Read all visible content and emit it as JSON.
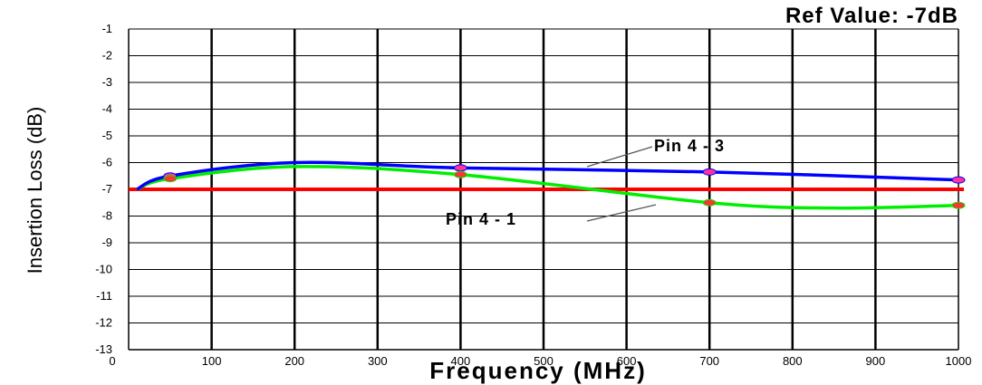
{
  "chart_data": {
    "type": "line",
    "title": "Ref Value: -7dB",
    "xlabel": "Frequency (MHz)",
    "ylabel": "Insertion Loss (dB)",
    "xlim": [
      0,
      1000
    ],
    "ylim": [
      -13,
      -1
    ],
    "xticks": [
      0,
      100,
      200,
      300,
      400,
      500,
      600,
      700,
      800,
      900,
      1000
    ],
    "yticks": [
      -1,
      -2,
      -3,
      -4,
      -5,
      -6,
      -7,
      -8,
      -9,
      -10,
      -11,
      -12,
      -13
    ],
    "grid": true,
    "reference_line": {
      "y": -7,
      "color": "#ff0000"
    },
    "series": [
      {
        "name": "Pin 4 - 3",
        "color": "#0000ff",
        "x": [
          10,
          50,
          200,
          400,
          700,
          1000
        ],
        "y": [
          -7.0,
          -6.5,
          -6.0,
          -6.2,
          -6.35,
          -6.65
        ],
        "markers_at": [
          50,
          400,
          700,
          1000
        ]
      },
      {
        "name": "Pin 4 - 1",
        "color": "#00ee00",
        "x": [
          10,
          50,
          200,
          400,
          700,
          850,
          1000
        ],
        "y": [
          -7.0,
          -6.6,
          -6.15,
          -6.45,
          -7.5,
          -7.7,
          -7.6
        ],
        "markers_at": [
          50,
          400,
          700,
          1000
        ]
      }
    ],
    "annotations": [
      {
        "text": "Pin 4 - 3",
        "series": 0
      },
      {
        "text": "Pin 4 - 1",
        "series": 1
      }
    ]
  }
}
